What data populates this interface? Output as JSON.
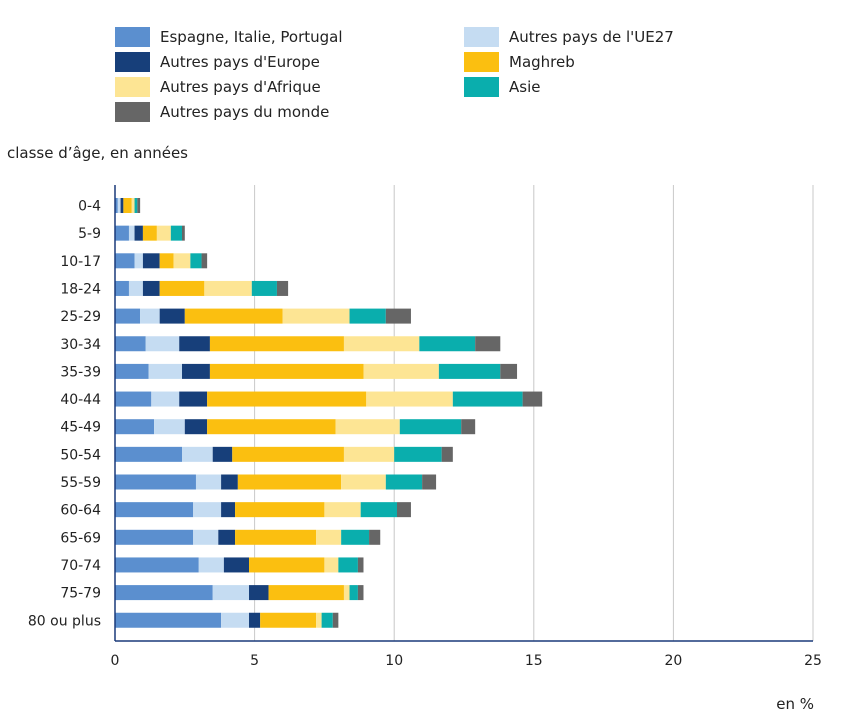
{
  "chart_data": {
    "type": "bar",
    "orientation": "horizontal",
    "stacked": true,
    "ylabel": "classe d’âge, en années",
    "xlabel": "",
    "unit_note": "en %",
    "xlim": [
      0,
      25
    ],
    "x_ticks": [
      "0",
      "5",
      "10",
      "15",
      "20",
      "25"
    ],
    "grid": true,
    "legend_position": "top",
    "categories": [
      "0-4",
      "5-9",
      "10-17",
      "18-24",
      "25-29",
      "30-34",
      "35-39",
      "40-44",
      "45-49",
      "50-54",
      "55-59",
      "60-64",
      "65-69",
      "70-74",
      "75-79",
      "80 ou plus"
    ],
    "series": [
      {
        "name": "Espagne, Italie, Portugal",
        "color": "#5b8fcf",
        "values": [
          0.1,
          0.5,
          0.7,
          0.5,
          0.9,
          1.1,
          1.2,
          1.3,
          1.4,
          2.4,
          2.9,
          2.8,
          2.8,
          3.0,
          3.5,
          3.8
        ]
      },
      {
        "name": "Autres pays de l'UE27",
        "color": "#c5dcf2",
        "values": [
          0.1,
          0.2,
          0.3,
          0.5,
          0.7,
          1.2,
          1.2,
          1.0,
          1.1,
          1.1,
          0.9,
          1.0,
          0.9,
          0.9,
          1.3,
          1.0
        ]
      },
      {
        "name": "Autres pays d'Europe",
        "color": "#173f7a",
        "values": [
          0.1,
          0.3,
          0.6,
          0.6,
          0.9,
          1.1,
          1.0,
          1.0,
          0.8,
          0.7,
          0.6,
          0.5,
          0.6,
          0.9,
          0.7,
          0.4
        ]
      },
      {
        "name": "Maghreb",
        "color": "#fbbf10",
        "values": [
          0.3,
          0.5,
          0.5,
          1.6,
          3.5,
          4.8,
          5.5,
          5.7,
          4.6,
          4.0,
          3.7,
          3.2,
          2.9,
          2.7,
          2.7,
          2.0
        ]
      },
      {
        "name": "Autres pays d'Afrique",
        "color": "#fde594",
        "values": [
          0.1,
          0.5,
          0.6,
          1.7,
          2.4,
          2.7,
          2.7,
          3.1,
          2.3,
          1.8,
          1.6,
          1.3,
          0.9,
          0.5,
          0.2,
          0.2
        ]
      },
      {
        "name": "Asie",
        "color": "#0aaead",
        "values": [
          0.1,
          0.4,
          0.4,
          0.9,
          1.3,
          2.0,
          2.2,
          2.5,
          2.2,
          1.7,
          1.3,
          1.3,
          1.0,
          0.7,
          0.3,
          0.4
        ]
      },
      {
        "name": "Autres pays du monde",
        "color": "#666666",
        "values": [
          0.1,
          0.1,
          0.2,
          0.4,
          0.9,
          0.9,
          0.6,
          0.7,
          0.5,
          0.4,
          0.5,
          0.5,
          0.4,
          0.2,
          0.2,
          0.2
        ]
      }
    ]
  }
}
